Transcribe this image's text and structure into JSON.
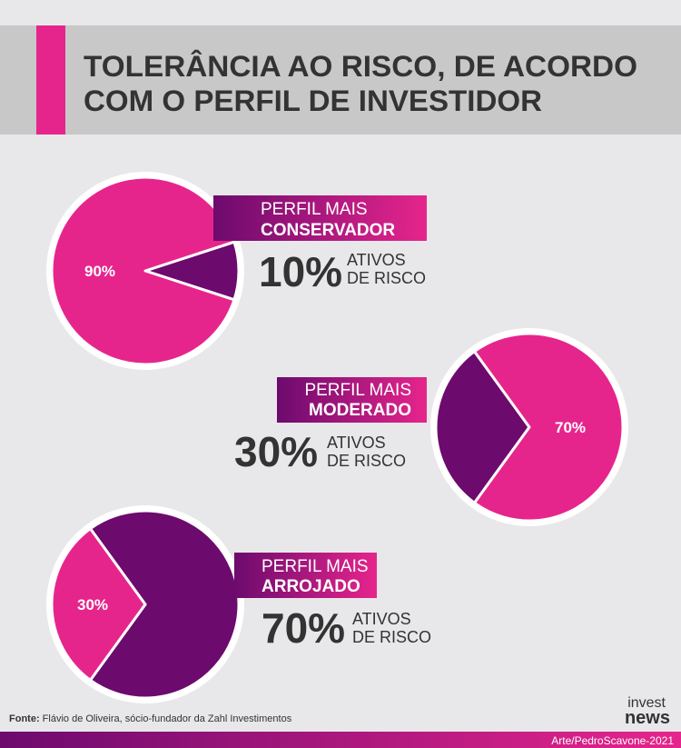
{
  "title": [
    "TOLERÂNCIA AO RISCO, DE ACORDO",
    "COM O PERFIL DE INVESTIDOR"
  ],
  "chart_data": [
    {
      "type": "pie",
      "profile": [
        "PERFIL MAIS",
        "CONSERVADOR"
      ],
      "caption": [
        "ATIVOS",
        "DE RISCO"
      ],
      "values": [
        10,
        90
      ],
      "value_labels": [
        "10%",
        "90%"
      ],
      "colors": [
        "#6d0a6e",
        "#e6258c"
      ]
    },
    {
      "type": "pie",
      "profile": [
        "PERFIL MAIS",
        "MODERADO"
      ],
      "caption": [
        "ATIVOS",
        "DE RISCO"
      ],
      "values": [
        30,
        70
      ],
      "value_labels": [
        "30%",
        "70%"
      ],
      "colors": [
        "#6d0a6e",
        "#e6258c"
      ]
    },
    {
      "type": "pie",
      "profile": [
        "PERFIL MAIS",
        "ARROJADO"
      ],
      "caption": [
        "ATIVOS",
        "DE RISCO"
      ],
      "values": [
        70,
        30
      ],
      "value_labels": [
        "70%",
        "30%"
      ],
      "colors": [
        "#6d0a6e",
        "#e6258c"
      ]
    }
  ],
  "source_label": "Fonte:",
  "source": "Flávio de Oliveira, sócio-fundador da Zahl Investimentos",
  "logo": [
    "invest",
    "news"
  ],
  "credit": "Arte/PedroScavone-2021"
}
